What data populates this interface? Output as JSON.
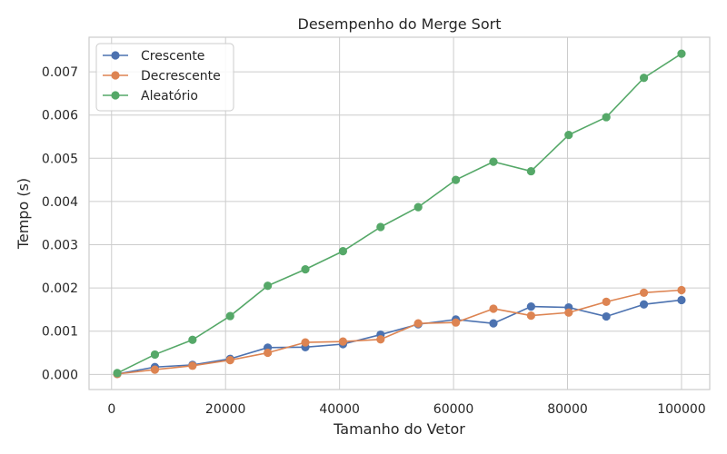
{
  "chart_data": {
    "type": "line",
    "title": "Desempenho do Merge Sort",
    "xlabel": "Tamanho do Vetor",
    "ylabel": "Tempo (s)",
    "xlim": [
      -3950,
      104950
    ],
    "ylim": [
      -0.00035,
      0.0078
    ],
    "xticks": [
      0,
      20000,
      40000,
      60000,
      80000,
      100000
    ],
    "xtick_labels": [
      "0",
      "20000",
      "40000",
      "60000",
      "80000",
      "100000"
    ],
    "yticks": [
      0,
      0.001,
      0.002,
      0.003,
      0.004,
      0.005,
      0.006,
      0.007
    ],
    "ytick_labels": [
      "0.000",
      "0.001",
      "0.002",
      "0.003",
      "0.004",
      "0.005",
      "0.006",
      "0.007"
    ],
    "grid": true,
    "legend_position": "top-left",
    "x": [
      1000,
      7600,
      14200,
      20800,
      27400,
      34000,
      40600,
      47200,
      53800,
      60400,
      67000,
      73600,
      80200,
      86800,
      93400,
      100000
    ],
    "series": [
      {
        "name": "Crescente",
        "color": "#4c72b0",
        "values": [
          1e-05,
          0.00017,
          0.00022,
          0.00036,
          0.00062,
          0.00063,
          0.0007,
          0.00092,
          0.00116,
          0.00127,
          0.00118,
          0.00157,
          0.00155,
          0.00134,
          0.00162,
          0.00172
        ]
      },
      {
        "name": "Decrescente",
        "color": "#dd8452",
        "values": [
          1e-05,
          0.00011,
          0.0002,
          0.00033,
          0.0005,
          0.00074,
          0.00076,
          0.00081,
          0.00118,
          0.0012,
          0.00152,
          0.00136,
          0.00143,
          0.00168,
          0.00189,
          0.00195
        ]
      },
      {
        "name": "Aleatório",
        "color": "#55a868",
        "values": [
          3e-05,
          0.00046,
          0.0008,
          0.00135,
          0.00205,
          0.00243,
          0.00285,
          0.00341,
          0.00387,
          0.0045,
          0.00492,
          0.0047,
          0.00554,
          0.00595,
          0.00686,
          0.00742
        ]
      }
    ]
  }
}
